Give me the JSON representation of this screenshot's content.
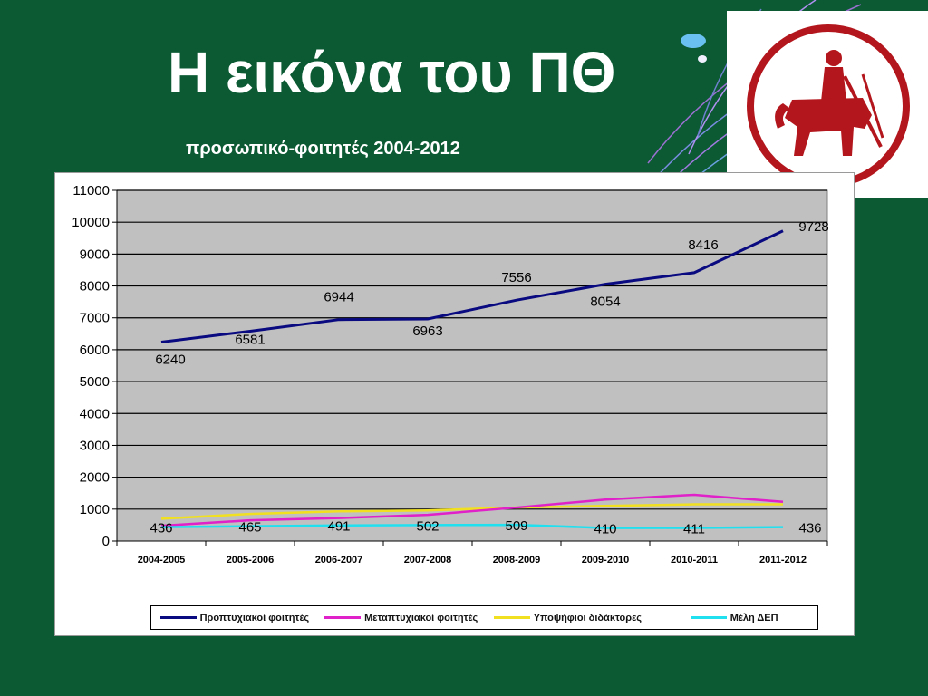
{
  "slide": {
    "title": "Η εικόνα του ΠΘ",
    "subtitle": "προσωπικό-φοιτητές 2004-2012"
  },
  "colors": {
    "background": "#0b5a34",
    "plot_area": "#c0c0c0",
    "logo_red": "#b3161c"
  },
  "chart_data": {
    "type": "line",
    "categories": [
      "2004-2005",
      "2005-2006",
      "2006-2007",
      "2007-2008",
      "2008-2009",
      "2009-2010",
      "2010-2011",
      "2011-2012"
    ],
    "yticks": [
      "0",
      "1000",
      "2000",
      "3000",
      "4000",
      "5000",
      "6000",
      "7000",
      "8000",
      "9000",
      "10000",
      "11000"
    ],
    "ylim": [
      0,
      11000
    ],
    "grid": true,
    "legend_position": "bottom",
    "series": [
      {
        "name": "Προπτυχιακοί φοιτητές",
        "color": "#0a0a80",
        "values": [
          6240,
          6581,
          6944,
          6963,
          7556,
          8054,
          8416,
          9728
        ],
        "labels": [
          "6240",
          "6581",
          "6944",
          "6963",
          "7556",
          "8054",
          "8416",
          "9728"
        ]
      },
      {
        "name": "Μεταπτυχιακοί φοιτητές",
        "color": "#e020c8",
        "values": [
          480,
          650,
          720,
          820,
          1050,
          1300,
          1450,
          1230
        ]
      },
      {
        "name": "Υποψήφιοι διδάκτορες",
        "color": "#f0e020",
        "values": [
          700,
          850,
          930,
          960,
          1050,
          1100,
          1150,
          1150
        ]
      },
      {
        "name": "Μέλη ΔΕΠ",
        "color": "#20e0f0",
        "values": [
          436,
          465,
          491,
          502,
          509,
          410,
          411,
          436
        ],
        "labels": [
          "436",
          "465",
          "491",
          "502",
          "509",
          "410",
          "411",
          "436"
        ]
      }
    ]
  }
}
